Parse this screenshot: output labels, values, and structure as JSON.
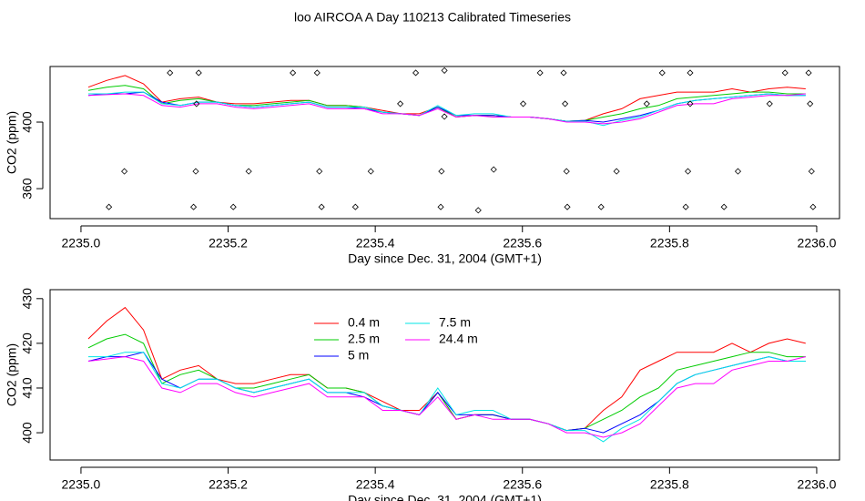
{
  "title": "loo AIRCOA A  Day 110213  Calibrated Timeseries",
  "chart_data": [
    {
      "type": "line",
      "xlabel": "Day since Dec. 31, 2004 (GMT+1)",
      "ylabel": "CO2 (ppm)",
      "xlim": [
        2234.958,
        2236.031
      ],
      "ylim": [
        342,
        433.4
      ],
      "xticks": [
        {
          "value": 2235,
          "label": "2235.0"
        },
        2235.2,
        2235.4,
        2235.6,
        2235.8,
        {
          "value": 2236,
          "label": "2236.0"
        }
      ],
      "yticks": [
        360,
        400
      ],
      "x": [
        2235.01,
        2235.035,
        2235.06,
        2235.085,
        2235.11,
        2235.135,
        2235.16,
        2235.185,
        2235.21,
        2235.235,
        2235.26,
        2235.285,
        2235.31,
        2235.335,
        2235.36,
        2235.385,
        2235.41,
        2235.435,
        2235.46,
        2235.485,
        2235.51,
        2235.535,
        2235.56,
        2235.585,
        2235.61,
        2235.635,
        2235.66,
        2235.685,
        2235.71,
        2235.735,
        2235.76,
        2235.785,
        2235.81,
        2235.835,
        2235.86,
        2235.885,
        2235.91,
        2235.935,
        2235.96,
        2235.985
      ],
      "series": [
        {
          "name": "0.4 m",
          "color": "#ff0000",
          "values": [
            421,
            425,
            428,
            423,
            412,
            414,
            415,
            412,
            411,
            411,
            412,
            413,
            413,
            410,
            410,
            409,
            407,
            405,
            405,
            409,
            403,
            404,
            404,
            403,
            403,
            402,
            400.5,
            401,
            405,
            408,
            414,
            416,
            418,
            418,
            418,
            420,
            418,
            420,
            421,
            420
          ]
        },
        {
          "name": "2.5 m",
          "color": "#00cc00",
          "values": [
            419,
            421,
            422,
            420,
            411,
            413,
            414,
            412,
            410,
            410,
            411,
            412,
            413,
            410,
            410,
            409,
            406,
            405,
            404,
            409,
            403,
            404,
            404,
            403,
            403,
            402,
            400.5,
            401,
            403,
            405,
            408,
            410,
            414,
            415,
            416,
            417,
            418,
            418,
            417,
            417
          ]
        },
        {
          "name": "5 m",
          "color": "#0000ff",
          "values": [
            416,
            417,
            417,
            418,
            412,
            410,
            412,
            412,
            410,
            409,
            410,
            411,
            412,
            409,
            409,
            408,
            406,
            405,
            404,
            409,
            404,
            404,
            404,
            403,
            403,
            402,
            400.5,
            401,
            400,
            402,
            404,
            407,
            411,
            413,
            414,
            415,
            416,
            417,
            416,
            416
          ]
        },
        {
          "name": "7.5 m",
          "color": "#00e5e5",
          "values": [
            417,
            417,
            418,
            418,
            411,
            410,
            412,
            412,
            410,
            409,
            410,
            411,
            412,
            409,
            409,
            409,
            406,
            405,
            404,
            410,
            404,
            405,
            405,
            403,
            403,
            402,
            400.5,
            400.5,
            398,
            401,
            403,
            407,
            411,
            413,
            414,
            415,
            416,
            417,
            416,
            416
          ]
        },
        {
          "name": "24.4 m",
          "color": "#ff00ff",
          "values": [
            416,
            416.5,
            417,
            416,
            410,
            409,
            411,
            411,
            409,
            408,
            409,
            410,
            411,
            408,
            408,
            408,
            405,
            405,
            404,
            408,
            403,
            404,
            403,
            403,
            403,
            402,
            400,
            400,
            399,
            400,
            402,
            406,
            410,
            411,
            411,
            414,
            415,
            416,
            416,
            417
          ]
        }
      ],
      "points": {
        "x": [
          2235.121,
          2235.16,
          2235.288,
          2235.321,
          2235.455,
          2235.494,
          2235.624,
          2235.656,
          2235.79,
          2235.828,
          2235.957,
          2235.989,
          2235.157,
          2235.434,
          2235.494,
          2235.601,
          2235.658,
          2235.769,
          2235.828,
          2235.936,
          2235.991,
          2235.059,
          2235.156,
          2235.228,
          2235.324,
          2235.394,
          2235.49,
          2235.561,
          2235.66,
          2235.728,
          2235.825,
          2235.893,
          2235.993,
          2235.038,
          2235.153,
          2235.207,
          2235.327,
          2235.373,
          2235.489,
          2235.54,
          2235.661,
          2235.707,
          2235.822,
          2235.874,
          2235.995
        ],
        "y": [
          429.6,
          429.6,
          429.6,
          429.6,
          429.6,
          431,
          429.6,
          429.6,
          429.6,
          429.6,
          429.6,
          429.6,
          411,
          411,
          403.3,
          411,
          411,
          411,
          411,
          411,
          411,
          370.4,
          370.4,
          370.4,
          370.4,
          370.4,
          370.4,
          371.5,
          370.4,
          370.4,
          370.4,
          370.4,
          370.4,
          349,
          349,
          349,
          349,
          349,
          349,
          347,
          349,
          349,
          349,
          349,
          349
        ]
      }
    },
    {
      "type": "line",
      "xlabel": "Day since Dec. 31, 2004 (GMT+1)",
      "ylabel": "CO2 (ppm)",
      "xlim": [
        2234.958,
        2236.031
      ],
      "ylim": [
        393.9,
        432
      ],
      "xticks": [
        {
          "value": 2235,
          "label": "2235.0"
        },
        2235.2,
        2235.4,
        2235.6,
        2235.8,
        {
          "value": 2236,
          "label": "2236.0"
        }
      ],
      "yticks": [
        400,
        410,
        420,
        430
      ],
      "x": [
        2235.01,
        2235.035,
        2235.06,
        2235.085,
        2235.11,
        2235.135,
        2235.16,
        2235.185,
        2235.21,
        2235.235,
        2235.26,
        2235.285,
        2235.31,
        2235.335,
        2235.36,
        2235.385,
        2235.41,
        2235.435,
        2235.46,
        2235.485,
        2235.51,
        2235.535,
        2235.56,
        2235.585,
        2235.61,
        2235.635,
        2235.66,
        2235.685,
        2235.71,
        2235.735,
        2235.76,
        2235.785,
        2235.81,
        2235.835,
        2235.86,
        2235.885,
        2235.91,
        2235.935,
        2235.96,
        2235.985
      ],
      "legend": true,
      "series": [
        {
          "name": "0.4 m",
          "color": "#ff0000",
          "values": [
            421,
            425,
            428,
            423,
            412,
            414,
            415,
            412,
            411,
            411,
            412,
            413,
            413,
            410,
            410,
            409,
            407,
            405,
            405,
            409,
            403,
            404,
            404,
            403,
            403,
            402,
            400.5,
            401,
            405,
            408,
            414,
            416,
            418,
            418,
            418,
            420,
            418,
            420,
            421,
            420
          ]
        },
        {
          "name": "2.5 m",
          "color": "#00cc00",
          "values": [
            419,
            421,
            422,
            420,
            411,
            413,
            414,
            412,
            410,
            410,
            411,
            412,
            413,
            410,
            410,
            409,
            406,
            405,
            404,
            409,
            403,
            404,
            404,
            403,
            403,
            402,
            400.5,
            401,
            403,
            405,
            408,
            410,
            414,
            415,
            416,
            417,
            418,
            418,
            417,
            417
          ]
        },
        {
          "name": "5 m",
          "color": "#0000ff",
          "values": [
            416,
            417,
            417,
            418,
            412,
            410,
            412,
            412,
            410,
            409,
            410,
            411,
            412,
            409,
            409,
            408,
            406,
            405,
            404,
            409,
            404,
            404,
            404,
            403,
            403,
            402,
            400.5,
            401,
            400,
            402,
            404,
            407,
            411,
            413,
            414,
            415,
            416,
            417,
            416,
            416
          ]
        },
        {
          "name": "7.5 m",
          "color": "#00e5e5",
          "values": [
            417,
            417,
            418,
            418,
            411,
            410,
            412,
            412,
            410,
            409,
            410,
            411,
            412,
            409,
            409,
            409,
            406,
            405,
            404,
            410,
            404,
            405,
            405,
            403,
            403,
            402,
            400.5,
            400.5,
            398,
            401,
            403,
            407,
            411,
            413,
            414,
            415,
            416,
            417,
            416,
            416
          ]
        },
        {
          "name": "24.4 m",
          "color": "#ff00ff",
          "values": [
            416,
            416.5,
            417,
            416,
            410,
            409,
            411,
            411,
            409,
            408,
            409,
            410,
            411,
            408,
            408,
            408,
            405,
            405,
            404,
            408,
            403,
            404,
            403,
            403,
            403,
            402,
            400,
            400,
            399,
            400,
            402,
            406,
            410,
            411,
            411,
            414,
            415,
            416,
            416,
            417
          ]
        }
      ]
    }
  ]
}
